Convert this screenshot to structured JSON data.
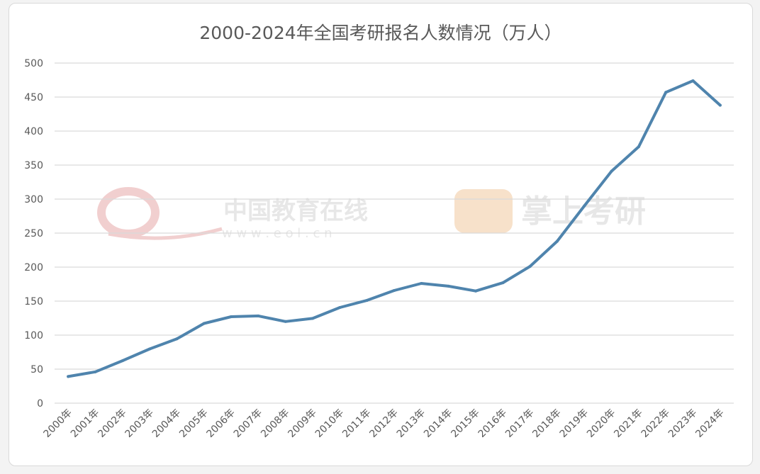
{
  "colors": {
    "line": "#4f84ad",
    "grid": "#d9d9d9",
    "axis_text": "#595959",
    "watermark_red": "#e7a8a8",
    "watermark_orange": "#f2c9a0",
    "watermark_gray": "#d4d4d4"
  },
  "watermarks": {
    "left_text": "中国教育在线",
    "left_url": "w w w . e o l . c n",
    "right_text": "掌上考研"
  },
  "chart_data": {
    "type": "line",
    "title": "2000-2024年全国考研报名人数情况（万人）",
    "xlabel": "",
    "ylabel": "",
    "ylim": [
      0,
      500
    ],
    "y_ticks": [
      0,
      50,
      100,
      150,
      200,
      250,
      300,
      350,
      400,
      450,
      500
    ],
    "grid": true,
    "legend": "none",
    "categories": [
      "2000年",
      "2001年",
      "2002年",
      "2003年",
      "2004年",
      "2005年",
      "2006年",
      "2007年",
      "2008年",
      "2009年",
      "2010年",
      "2011年",
      "2012年",
      "2013年",
      "2014年",
      "2015年",
      "2016年",
      "2017年",
      "2018年",
      "2019年",
      "2020年",
      "2021年",
      "2022年",
      "2023年",
      "2024年"
    ],
    "series": [
      {
        "values": [
          39.2,
          46,
          62.4,
          79.7,
          94.5,
          117.2,
          127.1,
          128.2,
          120,
          124.6,
          140.6,
          151.1,
          165.6,
          176,
          172,
          164.9,
          177,
          201,
          238,
          290,
          341,
          377,
          457,
          474,
          438
        ]
      }
    ]
  }
}
